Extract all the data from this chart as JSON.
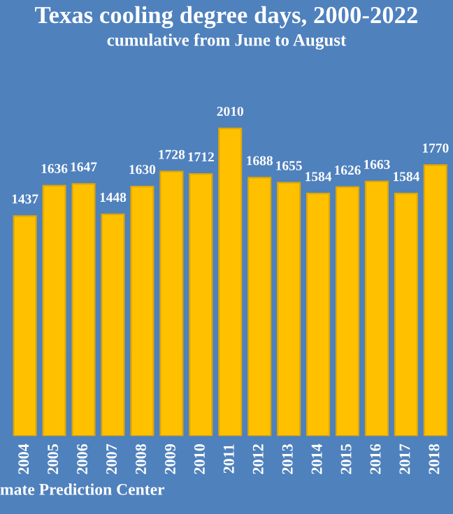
{
  "chart_data": {
    "type": "bar",
    "title": "Texas cooling degree days, 2000-2022",
    "subtitle": "cumulative from June to August",
    "categories": [
      "2004",
      "2005",
      "2006",
      "2007",
      "2008",
      "2009",
      "2010",
      "2011",
      "2012",
      "2013",
      "2014",
      "2015",
      "2016",
      "2017",
      "2018"
    ],
    "values": [
      1437,
      1636,
      1647,
      1448,
      1630,
      1728,
      1712,
      2010,
      1688,
      1655,
      1584,
      1626,
      1663,
      1584,
      1770
    ],
    "color": "#ffc000",
    "data_labels": true,
    "grid": false,
    "annotations": [
      "mate Prediction Center"
    ]
  }
}
